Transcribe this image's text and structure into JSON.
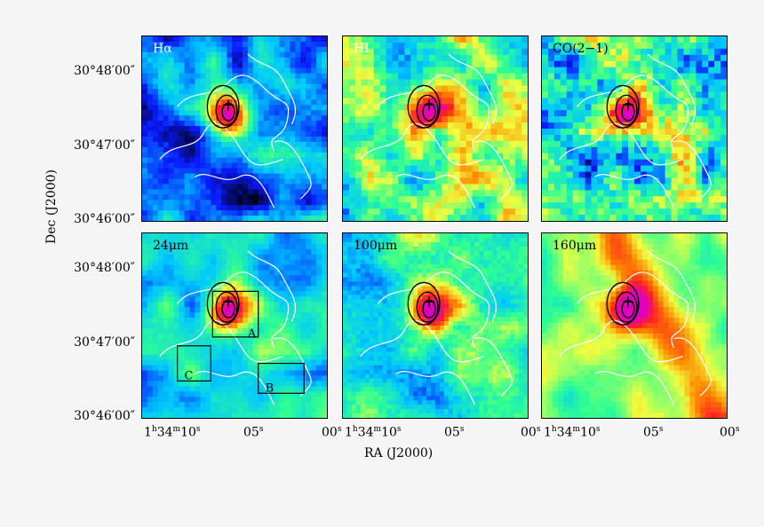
{
  "axes": {
    "ylabel": "Dec (J2000)",
    "xlabel": "RA (J2000)",
    "yticks": [
      "30°48′00″",
      "30°47′00″",
      "30°46′00″"
    ],
    "xticks_first": [
      "1",
      "h",
      "34",
      "m",
      "10",
      "s"
    ],
    "xtick_05": [
      "05",
      "s"
    ],
    "xtick_00": [
      "00",
      "s"
    ]
  },
  "panels": [
    {
      "label": "Hα",
      "map": "halpha"
    },
    {
      "label": "HI",
      "map": "hi"
    },
    {
      "label": "CO(2−1)",
      "map": "co"
    },
    {
      "label": "24μm",
      "map": "ir24"
    },
    {
      "label": "100μm",
      "map": "ir100"
    },
    {
      "label": "160μm",
      "map": "ir160"
    }
  ],
  "regions": [
    "A",
    "B",
    "C"
  ],
  "colors": {
    "background": "#f5f5f5",
    "colormap": [
      "#000000",
      "#0a1aff",
      "#00c8ff",
      "#30ff90",
      "#f0ff40",
      "#ff8a00",
      "#ff2020",
      "#e000c0"
    ],
    "contour_white": "#ffffff",
    "contour_black": "#000000"
  }
}
